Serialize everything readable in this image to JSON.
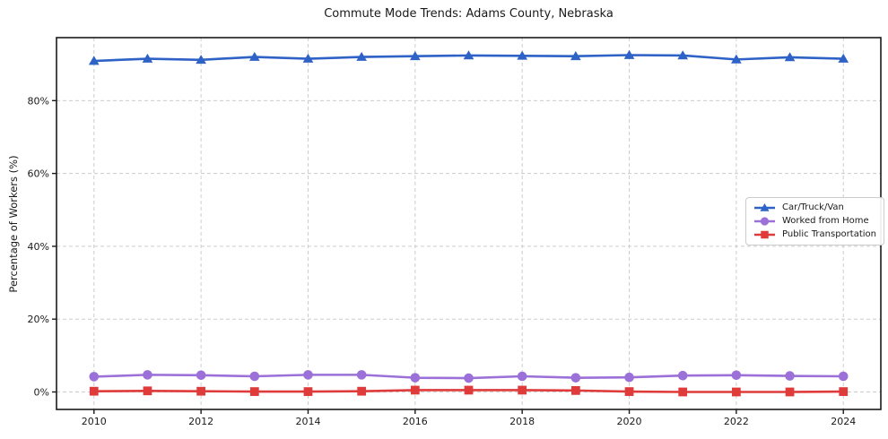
{
  "chart_data": {
    "type": "line",
    "title": "Commute Mode Trends: Adams County, Nebraska",
    "xlabel": "",
    "ylabel": "Percentage of Workers (%)",
    "x": [
      2010,
      2011,
      2012,
      2013,
      2014,
      2015,
      2016,
      2017,
      2018,
      2019,
      2020,
      2021,
      2022,
      2023,
      2024
    ],
    "xticks": [
      2010,
      2012,
      2014,
      2016,
      2018,
      2020,
      2022,
      2024
    ],
    "yticks": [
      0,
      20,
      40,
      60,
      80
    ],
    "ytick_suffix": "%",
    "xlim": [
      2009.3,
      2024.7
    ],
    "ylim": [
      -4.8,
      97.3
    ],
    "grid": true,
    "grid_style": "dashed",
    "legend_position": "center right",
    "series": [
      {
        "name": "Car/Truck/Van",
        "color": "#2e62c6",
        "marker": "triangle",
        "values": [
          90.9,
          91.5,
          91.2,
          92.0,
          91.5,
          92.0,
          92.2,
          92.4,
          92.3,
          92.2,
          92.5,
          92.4,
          91.3,
          91.9,
          91.5
        ]
      },
      {
        "name": "Worked from Home",
        "color": "#9b70d8",
        "marker": "circle",
        "values": [
          4.2,
          4.7,
          4.6,
          4.3,
          4.7,
          4.7,
          3.9,
          3.8,
          4.3,
          3.9,
          4.0,
          4.5,
          4.6,
          4.4,
          4.3
        ]
      },
      {
        "name": "Public Transportation",
        "color": "#e03b3b",
        "marker": "square",
        "values": [
          0.2,
          0.3,
          0.2,
          0.1,
          0.1,
          0.2,
          0.5,
          0.5,
          0.5,
          0.4,
          0.1,
          0.0,
          0.0,
          0.0,
          0.1
        ]
      }
    ],
    "colors": {
      "background": "#ffffff",
      "grid": "#cccccc",
      "spine": "#1a1a1a",
      "text": "#1a1a1a"
    }
  }
}
